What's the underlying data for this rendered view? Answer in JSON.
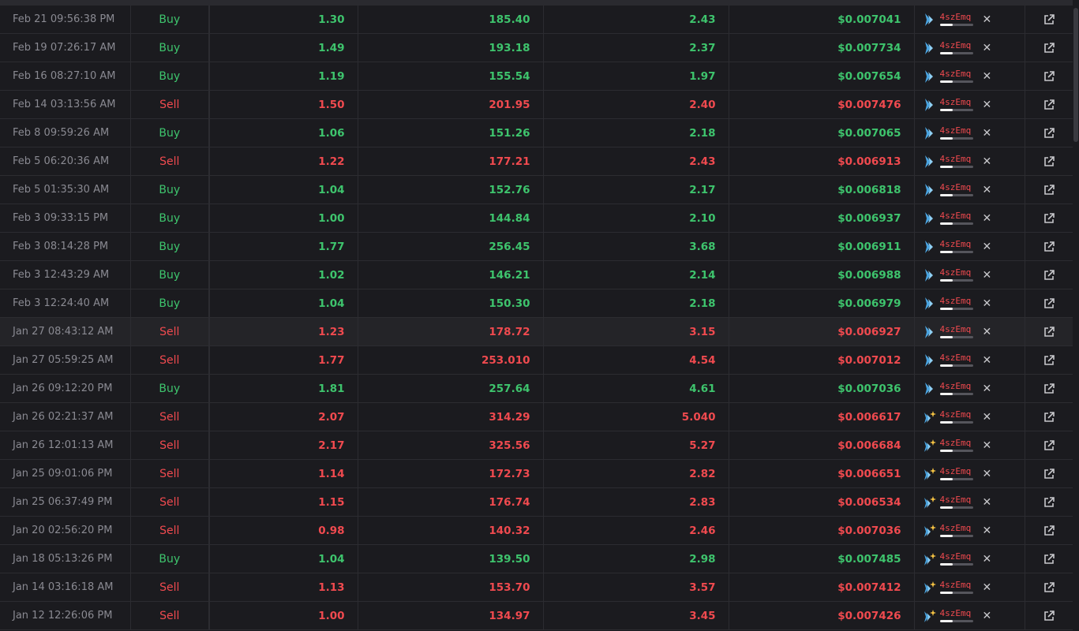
{
  "colors": {
    "buy": "#3ec46d",
    "sell": "#f04a4f"
  },
  "icons": {
    "filter_icon": "x-close-icon",
    "external_icon": "external-link-icon"
  },
  "rows": [
    {
      "date": "Feb 21 09:56:38 PM",
      "type": "Buy",
      "amount": "1.30",
      "qty": "185.40",
      "value": "2.43",
      "price": "$0.007041",
      "maker": "4szEmq",
      "logo": "plain",
      "bar": 0.4
    },
    {
      "date": "Feb 19 07:26:17 AM",
      "type": "Buy",
      "amount": "1.49",
      "qty": "193.18",
      "value": "2.37",
      "price": "$0.007734",
      "maker": "4szEmq",
      "logo": "plain",
      "bar": 0.4
    },
    {
      "date": "Feb 16 08:27:10 AM",
      "type": "Buy",
      "amount": "1.19",
      "qty": "155.54",
      "value": "1.97",
      "price": "$0.007654",
      "maker": "4szEmq",
      "logo": "plain",
      "bar": 0.4
    },
    {
      "date": "Feb 14 03:13:56 AM",
      "type": "Sell",
      "amount": "1.50",
      "qty": "201.95",
      "value": "2.40",
      "price": "$0.007476",
      "maker": "4szEmq",
      "logo": "plain",
      "bar": 0.4
    },
    {
      "date": "Feb 8 09:59:26 AM",
      "type": "Buy",
      "amount": "1.06",
      "qty": "151.26",
      "value": "2.18",
      "price": "$0.007065",
      "maker": "4szEmq",
      "logo": "plain",
      "bar": 0.4
    },
    {
      "date": "Feb 5 06:20:36 AM",
      "type": "Sell",
      "amount": "1.22",
      "qty": "177.21",
      "value": "2.43",
      "price": "$0.006913",
      "maker": "4szEmq",
      "logo": "plain",
      "bar": 0.4
    },
    {
      "date": "Feb 5 01:35:30 AM",
      "type": "Buy",
      "amount": "1.04",
      "qty": "152.76",
      "value": "2.17",
      "price": "$0.006818",
      "maker": "4szEmq",
      "logo": "plain",
      "bar": 0.4
    },
    {
      "date": "Feb 3 09:33:15 PM",
      "type": "Buy",
      "amount": "1.00",
      "qty": "144.84",
      "value": "2.10",
      "price": "$0.006937",
      "maker": "4szEmq",
      "logo": "plain",
      "bar": 0.4
    },
    {
      "date": "Feb 3 08:14:28 PM",
      "type": "Buy",
      "amount": "1.77",
      "qty": "256.45",
      "value": "3.68",
      "price": "$0.006911",
      "maker": "4szEmq",
      "logo": "plain",
      "bar": 0.4
    },
    {
      "date": "Feb 3 12:43:29 AM",
      "type": "Buy",
      "amount": "1.02",
      "qty": "146.21",
      "value": "2.14",
      "price": "$0.006988",
      "maker": "4szEmq",
      "logo": "plain",
      "bar": 0.4
    },
    {
      "date": "Feb 3 12:24:40 AM",
      "type": "Buy",
      "amount": "1.04",
      "qty": "150.30",
      "value": "2.18",
      "price": "$0.006979",
      "maker": "4szEmq",
      "logo": "plain",
      "bar": 0.4
    },
    {
      "date": "Jan 27 08:43:12 AM",
      "type": "Sell",
      "amount": "1.23",
      "qty": "178.72",
      "value": "3.15",
      "price": "$0.006927",
      "maker": "4szEmq",
      "logo": "plain",
      "bar": 0.4,
      "highlight": true
    },
    {
      "date": "Jan 27 05:59:25 AM",
      "type": "Sell",
      "amount": "1.77",
      "qty": "253.010",
      "value": "4.54",
      "price": "$0.007012",
      "maker": "4szEmq",
      "logo": "plain",
      "bar": 0.4
    },
    {
      "date": "Jan 26 09:12:20 PM",
      "type": "Buy",
      "amount": "1.81",
      "qty": "257.64",
      "value": "4.61",
      "price": "$0.007036",
      "maker": "4szEmq",
      "logo": "plain",
      "bar": 0.4
    },
    {
      "date": "Jan 26 02:21:37 AM",
      "type": "Sell",
      "amount": "2.07",
      "qty": "314.29",
      "value": "5.040",
      "price": "$0.006617",
      "maker": "4szEmq",
      "logo": "sparkle",
      "bar": 0.4
    },
    {
      "date": "Jan 26 12:01:13 AM",
      "type": "Sell",
      "amount": "2.17",
      "qty": "325.56",
      "value": "5.27",
      "price": "$0.006684",
      "maker": "4szEmq",
      "logo": "sparkle",
      "bar": 0.4
    },
    {
      "date": "Jan 25 09:01:06 PM",
      "type": "Sell",
      "amount": "1.14",
      "qty": "172.73",
      "value": "2.82",
      "price": "$0.006651",
      "maker": "4szEmq",
      "logo": "sparkle",
      "bar": 0.4
    },
    {
      "date": "Jan 25 06:37:49 PM",
      "type": "Sell",
      "amount": "1.15",
      "qty": "176.74",
      "value": "2.83",
      "price": "$0.006534",
      "maker": "4szEmq",
      "logo": "sparkle",
      "bar": 0.4
    },
    {
      "date": "Jan 20 02:56:20 PM",
      "type": "Sell",
      "amount": "0.98",
      "qty": "140.32",
      "value": "2.46",
      "price": "$0.007036",
      "maker": "4szEmq",
      "logo": "sparkle",
      "bar": 0.4
    },
    {
      "date": "Jan 18 05:13:26 PM",
      "type": "Buy",
      "amount": "1.04",
      "qty": "139.50",
      "value": "2.98",
      "price": "$0.007485",
      "maker": "4szEmq",
      "logo": "sparkle",
      "bar": 0.4
    },
    {
      "date": "Jan 14 03:16:18 AM",
      "type": "Sell",
      "amount": "1.13",
      "qty": "153.70",
      "value": "3.57",
      "price": "$0.007412",
      "maker": "4szEmq",
      "logo": "sparkle",
      "bar": 0.4
    },
    {
      "date": "Jan 12 12:26:06 PM",
      "type": "Sell",
      "amount": "1.00",
      "qty": "134.97",
      "value": "3.45",
      "price": "$0.007426",
      "maker": "4szEmq",
      "logo": "sparkle",
      "bar": 0.4
    }
  ]
}
